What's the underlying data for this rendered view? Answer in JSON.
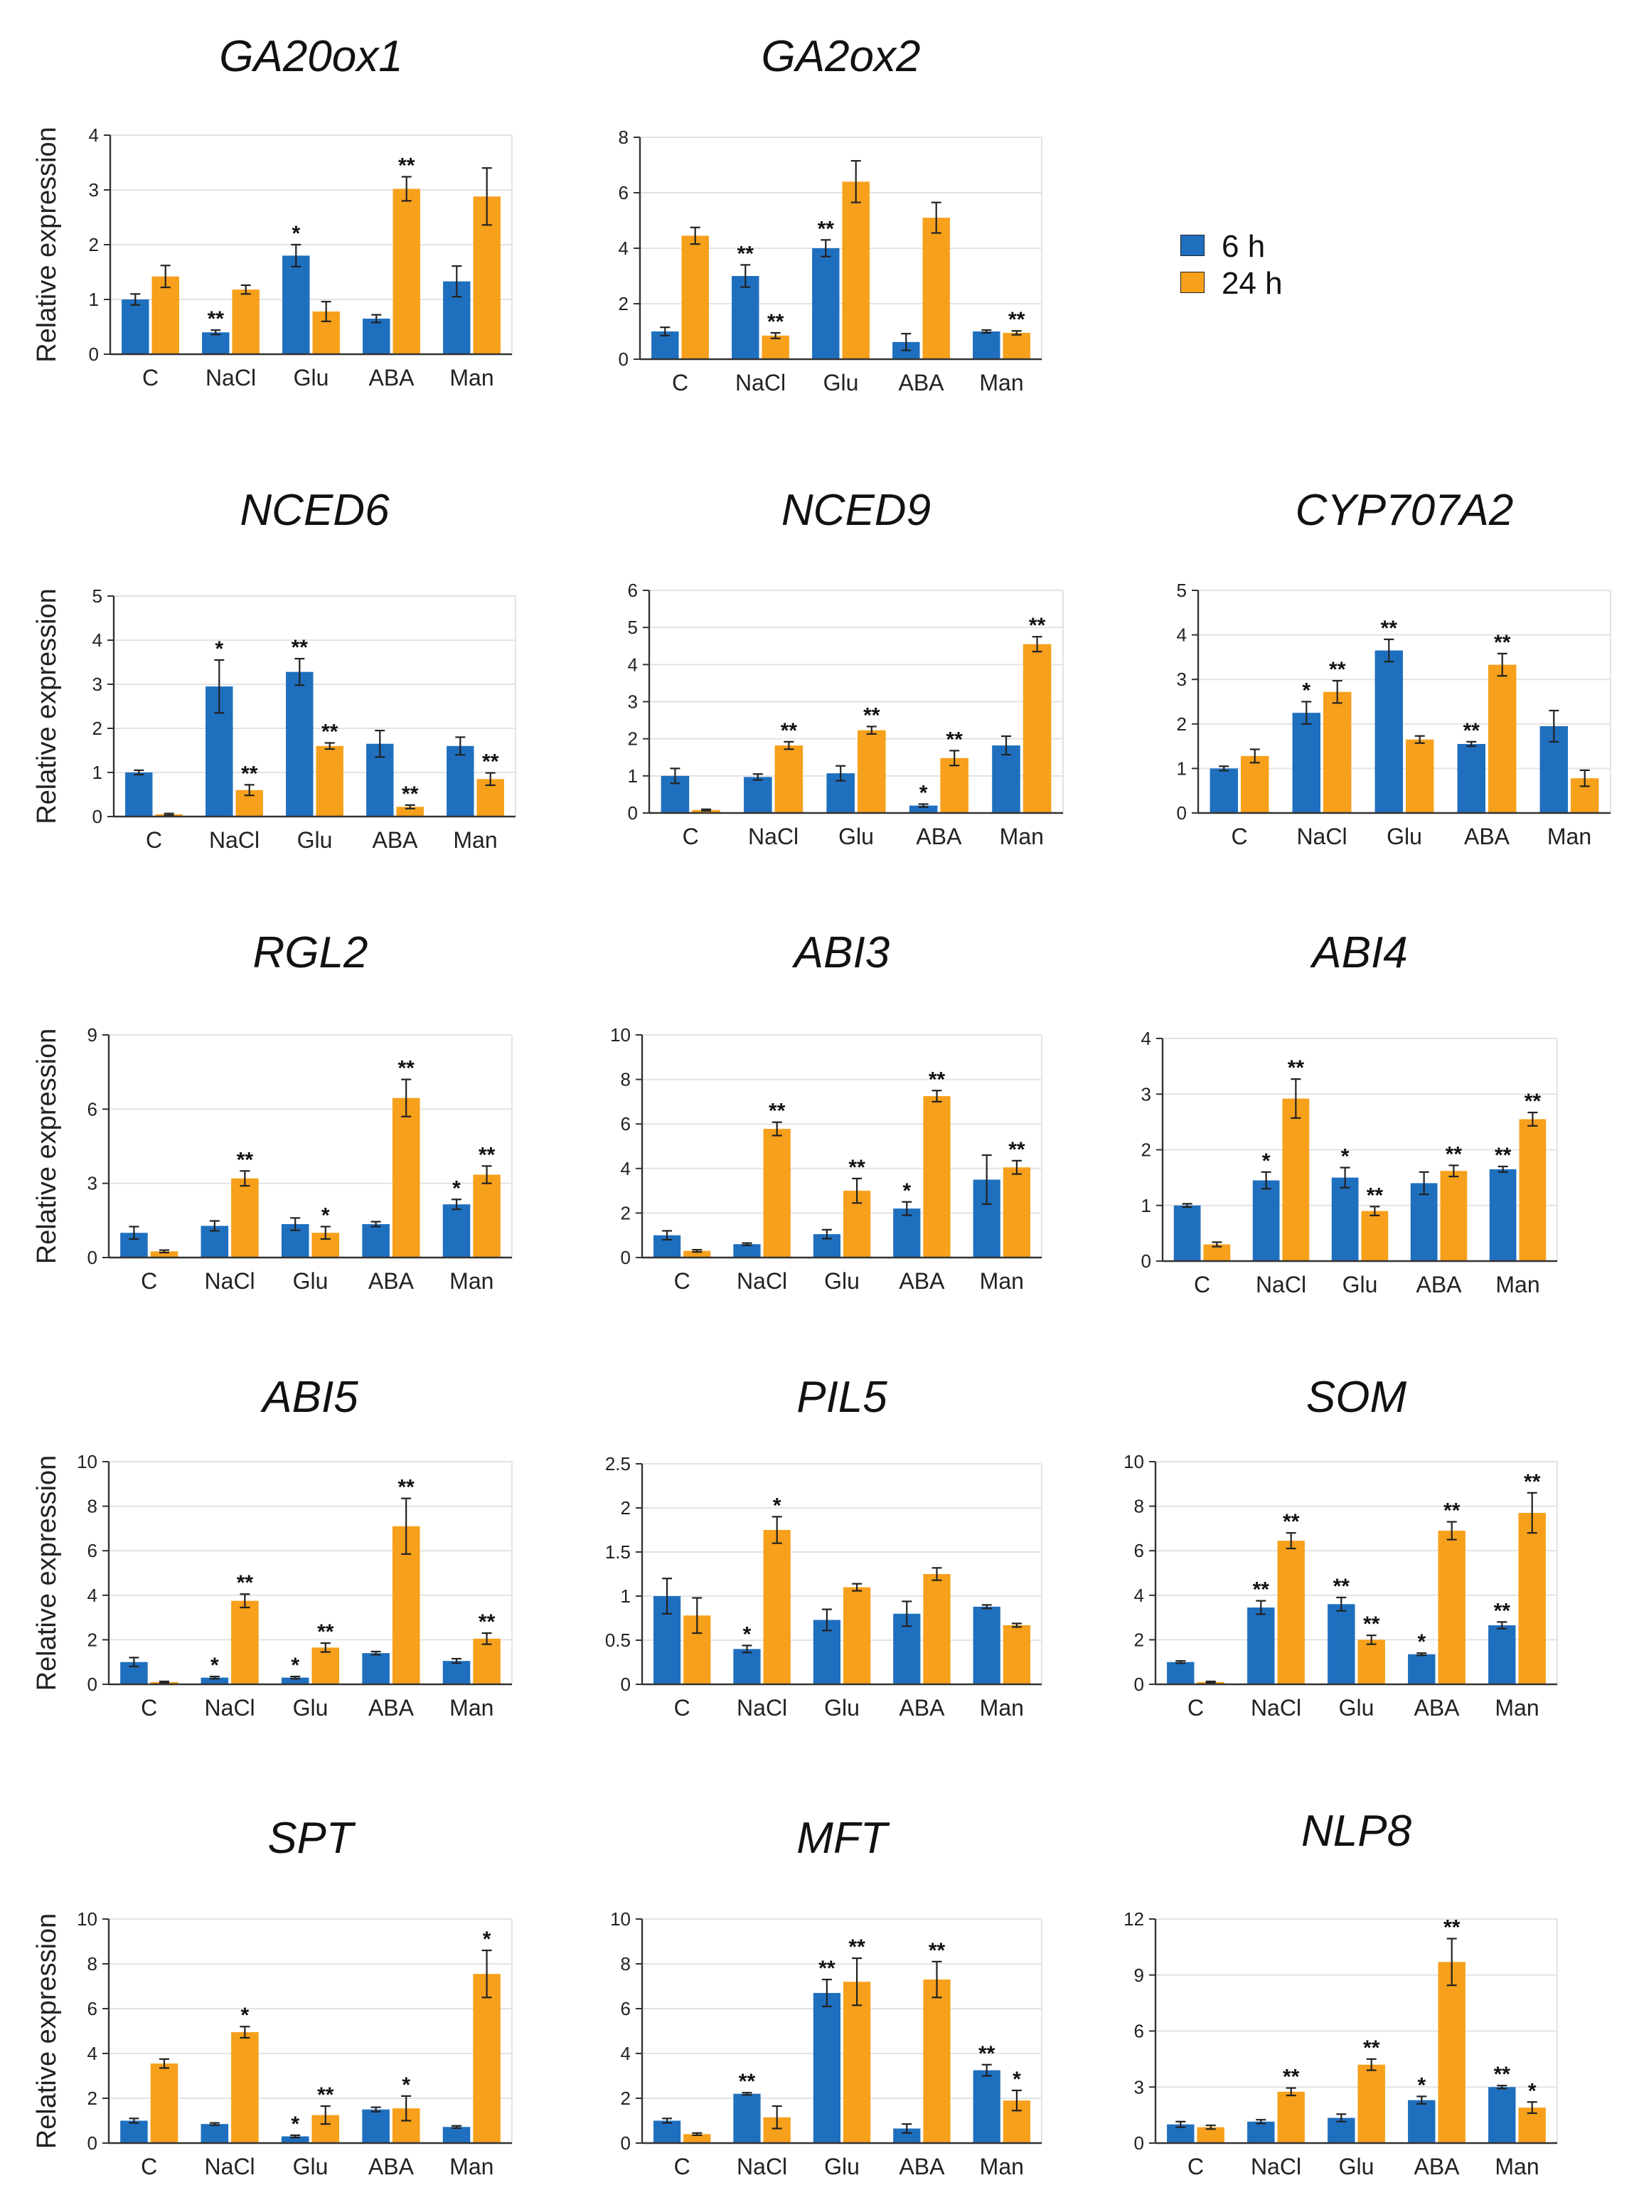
{
  "legend": {
    "series": [
      {
        "name": "6 h",
        "color": "#1f6fbf"
      },
      {
        "name": "24 h",
        "color": "#f7a01b"
      }
    ]
  },
  "colors": {
    "six_h": "#1f6fbf",
    "twentyfour_h": "#f7a01b",
    "grid": "#e3e3e3",
    "axis": "#333333"
  },
  "chart_data": [
    {
      "type": "bar",
      "title": "GA20ox1",
      "ylabel": "Relative  expression",
      "ylim": [
        0,
        4
      ],
      "yticks": [
        0,
        1,
        2,
        3,
        4
      ],
      "grid": true,
      "categories": [
        "C",
        "NaCl",
        "Glu",
        "ABA",
        "Man"
      ],
      "series": [
        {
          "name": "6 h",
          "values": [
            1.0,
            0.4,
            1.8,
            0.65,
            1.33
          ],
          "errors": [
            0.1,
            0.04,
            0.2,
            0.07,
            0.28
          ],
          "marks": [
            "",
            "**",
            "*",
            "",
            ""
          ]
        },
        {
          "name": "24 h",
          "values": [
            1.42,
            1.18,
            0.78,
            3.02,
            2.88
          ],
          "errors": [
            0.2,
            0.08,
            0.18,
            0.22,
            0.52
          ],
          "marks": [
            "",
            "",
            "",
            "**",
            ""
          ]
        }
      ]
    },
    {
      "type": "bar",
      "title": "GA2ox2",
      "ylabel": "",
      "ylim": [
        0,
        8
      ],
      "yticks": [
        0,
        2,
        4,
        6,
        8
      ],
      "grid": true,
      "categories": [
        "C",
        "NaCl",
        "Glu",
        "ABA",
        "Man"
      ],
      "series": [
        {
          "name": "6 h",
          "values": [
            1.0,
            3.0,
            4.0,
            0.62,
            1.0
          ],
          "errors": [
            0.15,
            0.4,
            0.3,
            0.3,
            0.05
          ],
          "marks": [
            "",
            "**",
            "**",
            "",
            ""
          ]
        },
        {
          "name": "24 h",
          "values": [
            4.45,
            0.85,
            6.4,
            5.1,
            0.95
          ],
          "errors": [
            0.3,
            0.1,
            0.75,
            0.55,
            0.07
          ],
          "marks": [
            "",
            "**",
            "",
            "",
            "**"
          ]
        }
      ]
    },
    {
      "type": "bar",
      "title": "NCED6",
      "ylabel": "Relative  expression",
      "ylim": [
        0,
        5
      ],
      "yticks": [
        0,
        1,
        2,
        3,
        4,
        5
      ],
      "grid": true,
      "categories": [
        "C",
        "NaCl",
        "Glu",
        "ABA",
        "Man"
      ],
      "series": [
        {
          "name": "6 h",
          "values": [
            1.0,
            2.95,
            3.28,
            1.65,
            1.6
          ],
          "errors": [
            0.05,
            0.6,
            0.3,
            0.3,
            0.2
          ],
          "marks": [
            "",
            "*",
            "**",
            "",
            ""
          ]
        },
        {
          "name": "24 h",
          "values": [
            0.05,
            0.6,
            1.6,
            0.22,
            0.85
          ],
          "errors": [
            0.02,
            0.12,
            0.07,
            0.04,
            0.14
          ],
          "marks": [
            "",
            "**",
            "**",
            "**",
            "**"
          ]
        }
      ]
    },
    {
      "type": "bar",
      "title": "NCED9",
      "ylabel": "",
      "ylim": [
        0,
        6
      ],
      "yticks": [
        0,
        1,
        2,
        3,
        4,
        5,
        6
      ],
      "grid": true,
      "categories": [
        "C",
        "NaCl",
        "Glu",
        "ABA",
        "Man"
      ],
      "series": [
        {
          "name": "6 h",
          "values": [
            1.0,
            0.97,
            1.07,
            0.2,
            1.82
          ],
          "errors": [
            0.2,
            0.08,
            0.2,
            0.04,
            0.25
          ],
          "marks": [
            "",
            "",
            "",
            "*",
            ""
          ]
        },
        {
          "name": "24 h",
          "values": [
            0.08,
            1.82,
            2.23,
            1.48,
            4.55
          ],
          "errors": [
            0.02,
            0.1,
            0.1,
            0.2,
            0.2
          ],
          "marks": [
            "",
            "**",
            "**",
            "**",
            "**"
          ]
        }
      ]
    },
    {
      "type": "bar",
      "title": "CYP707A2",
      "ylabel": "",
      "ylim": [
        0,
        5
      ],
      "yticks": [
        0,
        1,
        2,
        3,
        4,
        5
      ],
      "grid": true,
      "categories": [
        "C",
        "NaCl",
        "Glu",
        "ABA",
        "Man"
      ],
      "series": [
        {
          "name": "6 h",
          "values": [
            1.0,
            2.25,
            3.65,
            1.55,
            1.95
          ],
          "errors": [
            0.05,
            0.25,
            0.25,
            0.05,
            0.35
          ],
          "marks": [
            "",
            "*",
            "**",
            "**",
            ""
          ]
        },
        {
          "name": "24 h",
          "values": [
            1.28,
            2.72,
            1.65,
            3.33,
            0.78
          ],
          "errors": [
            0.15,
            0.25,
            0.08,
            0.25,
            0.18
          ],
          "marks": [
            "",
            "**",
            "",
            "**",
            ""
          ]
        }
      ]
    },
    {
      "type": "bar",
      "title": "RGL2",
      "ylabel": "Relative  expression",
      "ylim": [
        0,
        9
      ],
      "yticks": [
        0,
        3,
        6,
        9
      ],
      "grid": true,
      "categories": [
        "C",
        "NaCl",
        "Glu",
        "ABA",
        "Man"
      ],
      "series": [
        {
          "name": "6 h",
          "values": [
            1.0,
            1.28,
            1.35,
            1.35,
            2.15
          ],
          "errors": [
            0.25,
            0.2,
            0.25,
            0.1,
            0.2
          ],
          "marks": [
            "",
            "",
            "",
            "",
            "*"
          ]
        },
        {
          "name": "24 h",
          "values": [
            0.25,
            3.2,
            1.0,
            6.45,
            3.35
          ],
          "errors": [
            0.05,
            0.3,
            0.25,
            0.75,
            0.35
          ],
          "marks": [
            "",
            "**",
            "*",
            "**",
            "**"
          ]
        }
      ]
    },
    {
      "type": "bar",
      "title": "ABI3",
      "ylabel": "",
      "ylim": [
        0,
        10
      ],
      "yticks": [
        0,
        2,
        4,
        6,
        8,
        10
      ],
      "grid": true,
      "categories": [
        "C",
        "NaCl",
        "Glu",
        "ABA",
        "Man"
      ],
      "series": [
        {
          "name": "6 h",
          "values": [
            1.0,
            0.6,
            1.05,
            2.2,
            3.5
          ],
          "errors": [
            0.2,
            0.05,
            0.2,
            0.3,
            1.1
          ],
          "marks": [
            "",
            "",
            "",
            "*",
            ""
          ]
        },
        {
          "name": "24 h",
          "values": [
            0.3,
            5.78,
            3.0,
            7.25,
            4.05
          ],
          "errors": [
            0.05,
            0.3,
            0.55,
            0.25,
            0.3
          ],
          "marks": [
            "",
            "**",
            "**",
            "**",
            "**"
          ]
        }
      ]
    },
    {
      "type": "bar",
      "title": "ABI4",
      "ylabel": "",
      "ylim": [
        0,
        4
      ],
      "yticks": [
        0,
        1,
        2,
        3,
        4
      ],
      "grid": true,
      "categories": [
        "C",
        "NaCl",
        "Glu",
        "ABA",
        "Man"
      ],
      "series": [
        {
          "name": "6 h",
          "values": [
            1.0,
            1.45,
            1.5,
            1.4,
            1.65
          ],
          "errors": [
            0.03,
            0.15,
            0.18,
            0.2,
            0.05
          ],
          "marks": [
            "",
            "*",
            "*",
            "",
            "**"
          ]
        },
        {
          "name": "24 h",
          "values": [
            0.3,
            2.92,
            0.9,
            1.62,
            2.55
          ],
          "errors": [
            0.04,
            0.35,
            0.08,
            0.1,
            0.12
          ],
          "marks": [
            "",
            "**",
            "**",
            "**",
            "**"
          ]
        }
      ]
    },
    {
      "type": "bar",
      "title": "ABI5",
      "ylabel": "Relative  expression",
      "ylim": [
        0,
        10
      ],
      "yticks": [
        0,
        2,
        4,
        6,
        8,
        10
      ],
      "grid": true,
      "categories": [
        "C",
        "NaCl",
        "Glu",
        "ABA",
        "Man"
      ],
      "series": [
        {
          "name": "6 h",
          "values": [
            1.0,
            0.3,
            0.3,
            1.4,
            1.05
          ],
          "errors": [
            0.2,
            0.05,
            0.05,
            0.07,
            0.1
          ],
          "marks": [
            "",
            "*",
            "*",
            "",
            ""
          ]
        },
        {
          "name": "24 h",
          "values": [
            0.1,
            3.75,
            1.65,
            7.1,
            2.05
          ],
          "errors": [
            0.03,
            0.3,
            0.2,
            1.25,
            0.25
          ],
          "marks": [
            "",
            "**",
            "**",
            "**",
            "**"
          ]
        }
      ]
    },
    {
      "type": "bar",
      "title": "PIL5",
      "ylabel": "",
      "ylim": [
        0,
        2.5
      ],
      "yticks": [
        0,
        0.5,
        1,
        1.5,
        2,
        2.5
      ],
      "grid": true,
      "categories": [
        "C",
        "NaCl",
        "Glu",
        "ABA",
        "Man"
      ],
      "series": [
        {
          "name": "6 h",
          "values": [
            1.0,
            0.4,
            0.73,
            0.8,
            0.88
          ],
          "errors": [
            0.2,
            0.04,
            0.12,
            0.14,
            0.02
          ],
          "marks": [
            "",
            "*",
            "",
            "",
            ""
          ]
        },
        {
          "name": "24 h",
          "values": [
            0.78,
            1.75,
            1.1,
            1.25,
            0.67
          ],
          "errors": [
            0.2,
            0.15,
            0.04,
            0.07,
            0.02
          ],
          "marks": [
            "",
            "*",
            "",
            "",
            ""
          ]
        }
      ]
    },
    {
      "type": "bar",
      "title": "SOM",
      "ylabel": "",
      "ylim": [
        0,
        10
      ],
      "yticks": [
        0,
        2,
        4,
        6,
        8,
        10
      ],
      "grid": true,
      "categories": [
        "C",
        "NaCl",
        "Glu",
        "ABA",
        "Man"
      ],
      "series": [
        {
          "name": "6 h",
          "values": [
            1.0,
            3.45,
            3.6,
            1.35,
            2.65
          ],
          "errors": [
            0.05,
            0.3,
            0.3,
            0.05,
            0.15
          ],
          "marks": [
            "",
            "**",
            "**",
            "*",
            "**"
          ]
        },
        {
          "name": "24 h",
          "values": [
            0.1,
            6.45,
            2.0,
            6.9,
            7.7
          ],
          "errors": [
            0.03,
            0.35,
            0.2,
            0.4,
            0.9
          ],
          "marks": [
            "",
            "**",
            "**",
            "**",
            "**"
          ]
        }
      ]
    },
    {
      "type": "bar",
      "title": "SPT",
      "ylabel": "Relative  expression",
      "ylim": [
        0,
        10
      ],
      "yticks": [
        0,
        2,
        4,
        6,
        8,
        10
      ],
      "grid": true,
      "categories": [
        "C",
        "NaCl",
        "Glu",
        "ABA",
        "Man"
      ],
      "series": [
        {
          "name": "6 h",
          "values": [
            1.0,
            0.85,
            0.3,
            1.5,
            0.72
          ],
          "errors": [
            0.1,
            0.05,
            0.05,
            0.1,
            0.05
          ],
          "marks": [
            "",
            "",
            "*",
            "",
            ""
          ]
        },
        {
          "name": "24 h",
          "values": [
            3.55,
            4.95,
            1.25,
            1.55,
            7.55
          ],
          "errors": [
            0.2,
            0.25,
            0.4,
            0.55,
            1.05
          ],
          "marks": [
            "",
            "*",
            "**",
            "*",
            "*"
          ]
        }
      ]
    },
    {
      "type": "bar",
      "title": "MFT",
      "ylabel": "",
      "ylim": [
        0,
        10
      ],
      "yticks": [
        0,
        2,
        4,
        6,
        8,
        10
      ],
      "grid": true,
      "categories": [
        "C",
        "NaCl",
        "Glu",
        "ABA",
        "Man"
      ],
      "series": [
        {
          "name": "6 h",
          "values": [
            1.0,
            2.2,
            6.7,
            0.65,
            3.25
          ],
          "errors": [
            0.1,
            0.05,
            0.6,
            0.2,
            0.25
          ],
          "marks": [
            "",
            "**",
            "**",
            "",
            "**"
          ]
        },
        {
          "name": "24 h",
          "values": [
            0.4,
            1.15,
            7.2,
            7.3,
            1.9
          ],
          "errors": [
            0.05,
            0.5,
            1.05,
            0.8,
            0.45
          ],
          "marks": [
            "",
            "",
            "**",
            "**",
            "*"
          ]
        }
      ]
    },
    {
      "type": "bar",
      "title": "NLP8",
      "ylabel": "",
      "ylim": [
        0,
        12
      ],
      "yticks": [
        0,
        3,
        6,
        9,
        12
      ],
      "grid": true,
      "categories": [
        "C",
        "NaCl",
        "Glu",
        "ABA",
        "Man"
      ],
      "series": [
        {
          "name": "6 h",
          "values": [
            1.0,
            1.15,
            1.35,
            2.3,
            3.0
          ],
          "errors": [
            0.15,
            0.1,
            0.2,
            0.2,
            0.08
          ],
          "marks": [
            "",
            "",
            "",
            "*",
            "**"
          ]
        },
        {
          "name": "24 h",
          "values": [
            0.85,
            2.75,
            4.2,
            9.7,
            1.9
          ],
          "errors": [
            0.1,
            0.2,
            0.3,
            1.25,
            0.3
          ],
          "marks": [
            "",
            "**",
            "**",
            "**",
            "*"
          ]
        }
      ]
    }
  ]
}
